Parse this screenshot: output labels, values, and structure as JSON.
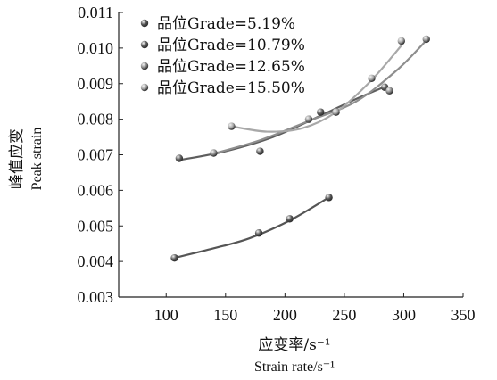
{
  "chart_data": {
    "type": "scatter",
    "xlabel_cn": "应变率/s⁻¹",
    "xlabel_en": "Strain rate/s⁻¹",
    "ylabel_cn": "峰值应变",
    "ylabel_en": "Peak strain",
    "xlim": [
      60,
      350
    ],
    "ylim": [
      0.003,
      0.011
    ],
    "x_ticks": [
      "100",
      "150",
      "200",
      "250",
      "300",
      "350"
    ],
    "y_ticks": [
      "0.003",
      "0.004",
      "0.005",
      "0.006",
      "0.007",
      "0.008",
      "0.009",
      "0.010",
      "0.011"
    ],
    "legend_position": "top-left",
    "series": [
      {
        "name": "品位Grade=5.19%",
        "color": "#555555",
        "points": [
          [
            107,
            0.0041
          ],
          [
            178,
            0.0048
          ],
          [
            204,
            0.0052
          ],
          [
            237,
            0.0058
          ]
        ],
        "fit": [
          [
            107,
            0.0041
          ],
          [
            140,
            0.00437
          ],
          [
            170,
            0.00465
          ],
          [
            204,
            0.00515
          ],
          [
            237,
            0.0058
          ]
        ]
      },
      {
        "name": "品位Grade=10.79%",
        "color": "#5e5e5e",
        "points": [
          [
            111,
            0.0069
          ],
          [
            179,
            0.0071
          ],
          [
            230,
            0.0082
          ],
          [
            284,
            0.0089
          ]
        ],
        "fit": [
          [
            111,
            0.00685
          ],
          [
            150,
            0.0071
          ],
          [
            190,
            0.0075
          ],
          [
            230,
            0.0081
          ],
          [
            260,
            0.00857
          ],
          [
            286,
            0.00894
          ]
        ]
      },
      {
        "name": "品位Grade=12.65%",
        "color": "#8e8e8e",
        "points": [
          [
            140,
            0.00705
          ],
          [
            220,
            0.008
          ],
          [
            288,
            0.0088
          ],
          [
            319,
            0.01025
          ]
        ],
        "fit": [
          [
            140,
            0.00703
          ],
          [
            180,
            0.00742
          ],
          [
            220,
            0.00795
          ],
          [
            260,
            0.0085
          ],
          [
            295,
            0.0094
          ],
          [
            320,
            0.01025
          ]
        ]
      },
      {
        "name": "品位Grade=15.50%",
        "color": "#a8a8a8",
        "points": [
          [
            155,
            0.0078
          ],
          [
            243,
            0.0082
          ],
          [
            273,
            0.00915
          ],
          [
            298,
            0.0102
          ]
        ],
        "fit": [
          [
            155,
            0.0078
          ],
          [
            185,
            0.00765
          ],
          [
            215,
            0.00775
          ],
          [
            243,
            0.0082
          ],
          [
            273,
            0.0091
          ],
          [
            300,
            0.01015
          ]
        ]
      }
    ]
  }
}
